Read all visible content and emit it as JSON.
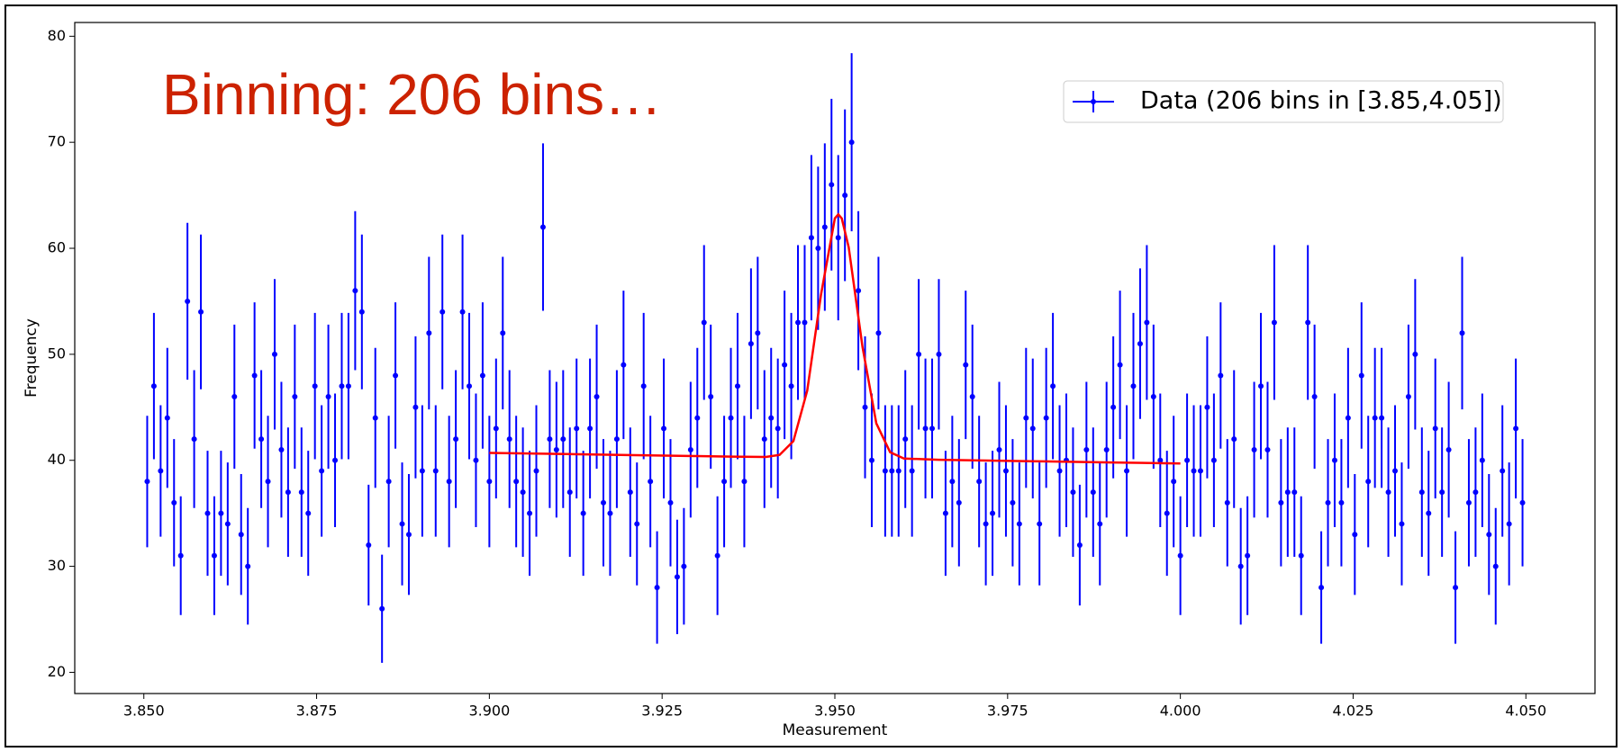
{
  "chart_data": {
    "type": "errorbar",
    "annotation": "Binning: 206 bins…",
    "xlabel": "Measurement",
    "ylabel": "Frequency",
    "xlim": [
      3.84,
      4.06
    ],
    "ylim": [
      18,
      81.3
    ],
    "xticks": [
      {
        "value": 3.85,
        "label": "3.850"
      },
      {
        "value": 3.875,
        "label": "3.875"
      },
      {
        "value": 3.9,
        "label": "3.900"
      },
      {
        "value": 3.925,
        "label": "3.925"
      },
      {
        "value": 3.95,
        "label": "3.950"
      },
      {
        "value": 3.975,
        "label": "3.975"
      },
      {
        "value": 4.0,
        "label": "4.000"
      },
      {
        "value": 4.025,
        "label": "4.025"
      },
      {
        "value": 4.05,
        "label": "4.050"
      }
    ],
    "yticks": [
      20,
      30,
      40,
      50,
      60,
      70,
      80
    ],
    "grid": false,
    "legend": "upper right",
    "bin_range": [
      3.85,
      4.05
    ],
    "series": [
      {
        "name": "Data (206 bins in [3.85,4.05])",
        "color": "#0000ff",
        "values": [
          38,
          47,
          39,
          44,
          36,
          31,
          55,
          42,
          54,
          35,
          31,
          35,
          34,
          46,
          33,
          30,
          48,
          42,
          38,
          50,
          41,
          37,
          46,
          37,
          35,
          47,
          39,
          46,
          40,
          47,
          47,
          56,
          54,
          32,
          44,
          26,
          38,
          48,
          34,
          33,
          45,
          39,
          52,
          39,
          54,
          38,
          42,
          54,
          47,
          40,
          48,
          38,
          43,
          52,
          42,
          38,
          37,
          35,
          39,
          62,
          42,
          41,
          42,
          37,
          43,
          35,
          43,
          46,
          36,
          35,
          42,
          49,
          37,
          34,
          47,
          38,
          28,
          43,
          36,
          29,
          30,
          41,
          44,
          53,
          46,
          31,
          38,
          44,
          47,
          38,
          51,
          52,
          42,
          44,
          43,
          49,
          47,
          53,
          53,
          61,
          60,
          62,
          66,
          61,
          65,
          70,
          56,
          45,
          40,
          52,
          39,
          39,
          39,
          42,
          39,
          50,
          43,
          43,
          50,
          35,
          38,
          36,
          49,
          46,
          38,
          34,
          35,
          41,
          39,
          36,
          34,
          44,
          43,
          34,
          44,
          47,
          39,
          40,
          37,
          32,
          41,
          37,
          34,
          41,
          45,
          49,
          39,
          47,
          51,
          53,
          46,
          40,
          35,
          38,
          31,
          40,
          39,
          39,
          45,
          40,
          48,
          36,
          42,
          30,
          31,
          41,
          47,
          41,
          53,
          36,
          37,
          37,
          31,
          53,
          46,
          28,
          36,
          40,
          36,
          44,
          33,
          48,
          38,
          44,
          44,
          37,
          39,
          34,
          46,
          50,
          37,
          35,
          43,
          37,
          41,
          28,
          52,
          36,
          37,
          40,
          33,
          30,
          39,
          34,
          43,
          36
        ],
        "errors": [
          6.2,
          6.9,
          6.2,
          6.6,
          6,
          5.6,
          7.4,
          6.5,
          7.3,
          5.9,
          5.6,
          5.9,
          5.8,
          6.8,
          5.7,
          5.5,
          6.9,
          6.5,
          6.2,
          7.1,
          6.4,
          6.1,
          6.8,
          6.1,
          5.9,
          6.9,
          6.2,
          6.8,
          6.3,
          6.9,
          6.9,
          7.5,
          7.3,
          5.7,
          6.6,
          5.1,
          6.2,
          6.9,
          5.8,
          5.7,
          6.7,
          6.2,
          7.2,
          6.2,
          7.3,
          6.2,
          6.5,
          7.3,
          6.9,
          6.3,
          6.9,
          6.2,
          6.6,
          7.2,
          6.5,
          6.2,
          6.1,
          5.9,
          6.2,
          7.9,
          6.5,
          6.4,
          6.5,
          6.1,
          6.6,
          5.9,
          6.6,
          6.8,
          6,
          5.9,
          6.5,
          7,
          6.1,
          5.8,
          6.9,
          6.2,
          5.3,
          6.6,
          6,
          5.4,
          5.5,
          6.4,
          6.6,
          7.3,
          6.8,
          5.6,
          6.2,
          6.6,
          6.9,
          6.2,
          7.1,
          7.2,
          6.5,
          6.6,
          6.6,
          7,
          6.9,
          7.3,
          7.3,
          7.8,
          7.7,
          7.9,
          8.1,
          7.8,
          8.1,
          8.4,
          7.5,
          6.7,
          6.3,
          7.2,
          6.2,
          6.2,
          6.2,
          6.5,
          6.2,
          7.1,
          6.6,
          6.6,
          7.1,
          5.9,
          6.2,
          6,
          7,
          6.8,
          6.2,
          5.8,
          5.9,
          6.4,
          6.2,
          6,
          5.8,
          6.6,
          6.6,
          5.8,
          6.6,
          6.9,
          6.2,
          6.3,
          6.1,
          5.7,
          6.4,
          6.1,
          5.8,
          6.4,
          6.7,
          7,
          6.2,
          6.9,
          7.1,
          7.3,
          6.8,
          6.3,
          5.9,
          6.2,
          5.6,
          6.3,
          6.2,
          6.2,
          6.7,
          6.3,
          6.9,
          6,
          6.5,
          5.5,
          5.6,
          6.4,
          6.9,
          6.4,
          7.3,
          6,
          6.1,
          6.1,
          5.6,
          7.3,
          6.8,
          5.3,
          6,
          6.3,
          6,
          6.6,
          5.7,
          6.9,
          6.2,
          6.6,
          6.6,
          6.1,
          6.2,
          5.8,
          6.8,
          7.1,
          6.1,
          5.9,
          6.6,
          6.1,
          6.4,
          5.3,
          7.2,
          6,
          6.1,
          6.3,
          5.7,
          5.5,
          6.2,
          5.8,
          6.6,
          6
        ]
      }
    ],
    "fit": {
      "color": "#ff0000",
      "x": [
        3.9,
        3.91,
        3.92,
        3.93,
        3.935,
        3.94,
        3.942,
        3.944,
        3.946,
        3.948,
        3.95,
        3.9505,
        3.951,
        3.952,
        3.954,
        3.956,
        3.958,
        3.96,
        3.965,
        3.97,
        3.98,
        3.99,
        4.0
      ],
      "values": [
        40.7,
        40.6,
        40.5,
        40.4,
        40.35,
        40.32,
        40.51,
        41.81,
        46.57,
        55.65,
        62.83,
        63.2,
        62.82,
        60.1,
        50.69,
        43.48,
        40.76,
        40.17,
        40.05,
        40.0,
        39.9,
        39.8,
        39.7
      ]
    }
  }
}
